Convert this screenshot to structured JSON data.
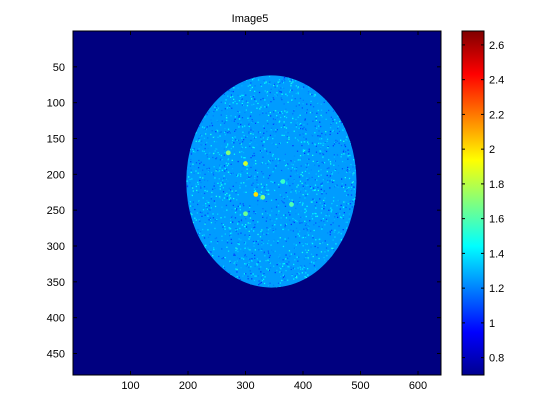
{
  "chart_data": {
    "type": "heatmap",
    "title": "Image5",
    "xlabel": "",
    "ylabel": "",
    "image_width": 640,
    "image_height": 480,
    "x_ticks": [
      100,
      200,
      300,
      400,
      500,
      600
    ],
    "y_ticks": [
      50,
      100,
      150,
      200,
      250,
      300,
      350,
      400,
      450
    ],
    "colormap": "jet",
    "background_value": 0.7,
    "colorbar": {
      "min": 0.7,
      "max": 2.68,
      "ticks": [
        0.8,
        1,
        1.2,
        1.4,
        1.6,
        1.8,
        2,
        2.2,
        2.4,
        2.6
      ]
    },
    "disk": {
      "center_x": 345,
      "center_y": 210,
      "radius_x": 148,
      "radius_y": 148,
      "mean_value": 1.25,
      "noise_range": [
        1.05,
        1.5
      ]
    },
    "hotspots": [
      {
        "x": 300,
        "y": 185,
        "value": 1.85
      },
      {
        "x": 318,
        "y": 228,
        "value": 2.0
      },
      {
        "x": 330,
        "y": 232,
        "value": 1.7
      },
      {
        "x": 270,
        "y": 170,
        "value": 1.7
      },
      {
        "x": 380,
        "y": 242,
        "value": 1.6
      },
      {
        "x": 300,
        "y": 255,
        "value": 1.65
      },
      {
        "x": 365,
        "y": 210,
        "value": 1.55
      }
    ]
  }
}
